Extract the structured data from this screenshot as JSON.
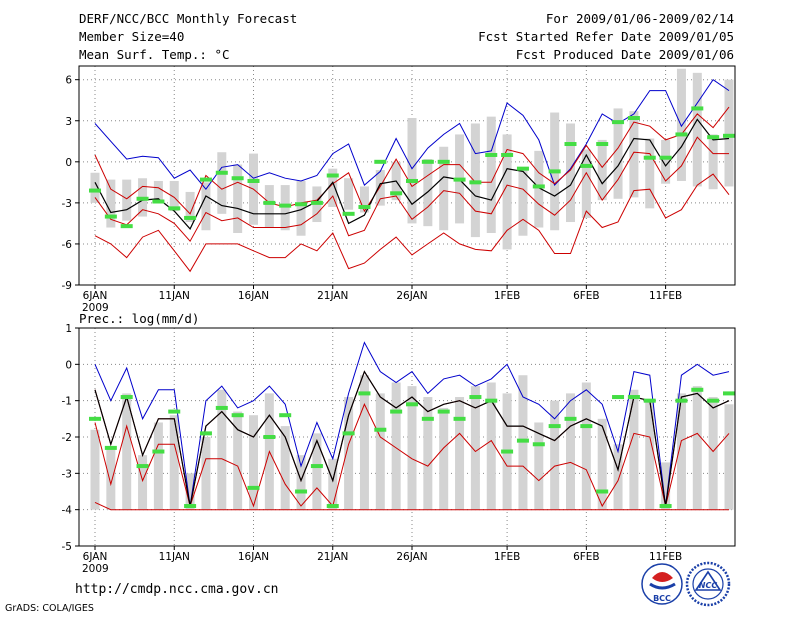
{
  "header": {
    "title": "DERF/NCC/BCC Monthly Forecast",
    "member_size": "Member Size=40",
    "variable": "Mean Surf. Temp.: °C",
    "period": "For 2009/01/06-2009/02/14",
    "started": "Fcst Started Refer Date 2009/01/05",
    "produced": "Fcst Produced Date 2009/01/06"
  },
  "footer": {
    "url": "http://cmdp.ncc.cma.gov.cn",
    "credit": "GrADS: COLA/IGES",
    "logo_left": "BCC",
    "logo_right": "NCC"
  },
  "colors": {
    "bar": "#d3d3d3",
    "max": "#0000cc",
    "min": "#cc0000",
    "ens_hi": "#cc0000",
    "ens_lo": "#cc0000",
    "mean": "#000000",
    "marker": "#44dd44",
    "grid": "#888888"
  },
  "chart_data": [
    {
      "type": "line",
      "title": "Mean Surf. Temp.: °C",
      "ylim": [
        -9,
        7
      ],
      "yticks": [
        -9,
        -6,
        -3,
        0,
        3,
        6
      ],
      "xticks": [
        {
          "day": 0,
          "label": "6JAN",
          "sub": "2009"
        },
        {
          "day": 5,
          "label": "11JAN"
        },
        {
          "day": 10,
          "label": "16JAN"
        },
        {
          "day": 15,
          "label": "21JAN"
        },
        {
          "day": 20,
          "label": "26JAN"
        },
        {
          "day": 26,
          "label": "1FEB"
        },
        {
          "day": 31,
          "label": "6FEB"
        },
        {
          "day": 36,
          "label": "11FEB"
        }
      ],
      "series": {
        "max": [
          2.8,
          1.5,
          0.2,
          0.4,
          0.3,
          -1.2,
          -0.6,
          -2.0,
          -0.4,
          -0.2,
          -1.2,
          -0.8,
          -1.2,
          -1.4,
          -1.0,
          0.6,
          1.3,
          -1.7,
          -0.7,
          1.7,
          -0.5,
          1.0,
          2.0,
          2.8,
          0.6,
          0.8,
          4.3,
          3.4,
          1.6,
          -1.7,
          -0.5,
          1.3,
          3.5,
          2.8,
          3.5,
          5.2,
          5.2,
          2.6,
          4.3,
          6.0,
          5.2
        ],
        "ens_hi": [
          0.5,
          -2.0,
          -2.7,
          -1.8,
          -1.9,
          -2.6,
          -3.8,
          -1.0,
          -2.0,
          -1.5,
          -2.0,
          -3.0,
          -3.3,
          -3.0,
          -2.8,
          -1.6,
          -0.8,
          -3.6,
          -1.8,
          0.2,
          -1.8,
          -1.0,
          -0.2,
          -0.2,
          -1.5,
          -1.5,
          0.9,
          0.6,
          -0.8,
          -1.6,
          -0.6,
          1.2,
          -0.4,
          1.0,
          2.9,
          2.6,
          1.6,
          2.0,
          3.5,
          2.5,
          4.0
        ],
        "mean": [
          -1.5,
          -3.7,
          -3.5,
          -2.8,
          -2.7,
          -3.6,
          -4.9,
          -2.5,
          -3.2,
          -3.4,
          -3.8,
          -3.8,
          -3.8,
          -3.5,
          -2.9,
          -1.5,
          -4.5,
          -3.9,
          -1.6,
          -1.4,
          -3.1,
          -2.2,
          -1.1,
          -1.3,
          -2.5,
          -2.8,
          -0.5,
          -0.7,
          -1.9,
          -2.5,
          -1.7,
          0.5,
          -1.6,
          -0.3,
          1.7,
          1.6,
          -0.3,
          1.1,
          3.1,
          1.6,
          1.7
        ],
        "ens_lo": [
          -2.6,
          -4.2,
          -4.6,
          -3.5,
          -3.8,
          -4.5,
          -5.8,
          -3.7,
          -4.3,
          -4.1,
          -4.8,
          -4.8,
          -4.8,
          -4.6,
          -3.8,
          -2.5,
          -5.4,
          -5.0,
          -2.7,
          -2.5,
          -4.2,
          -3.3,
          -2.1,
          -2.3,
          -3.6,
          -3.8,
          -1.7,
          -2.0,
          -3.1,
          -3.9,
          -2.8,
          -0.8,
          -2.8,
          -1.3,
          0.7,
          0.6,
          -1.4,
          -0.3,
          1.8,
          0.6,
          0.6
        ],
        "min": [
          -5.4,
          -6.0,
          -7.0,
          -5.5,
          -5.0,
          -6.5,
          -8.0,
          -6.0,
          -6.0,
          -6.0,
          -6.5,
          -7.0,
          -7.0,
          -6.0,
          -6.5,
          -5.2,
          -7.8,
          -7.4,
          -6.4,
          -5.5,
          -6.8,
          -6.0,
          -5.2,
          -6.0,
          -6.4,
          -6.5,
          -5.0,
          -4.2,
          -5.0,
          -6.7,
          -6.7,
          -3.6,
          -4.8,
          -4.4,
          -2.1,
          -2.0,
          -4.1,
          -3.5,
          -1.7,
          -0.9,
          -2.4
        ],
        "bar_top": [
          -0.8,
          -1.3,
          -1.3,
          -1.2,
          -1.4,
          -1.4,
          -2.2,
          -1.5,
          0.7,
          -0.2,
          0.6,
          -1.7,
          -1.7,
          -1.4,
          -1.8,
          -0.5,
          -1.2,
          -1.8,
          -0.6,
          0.0,
          3.2,
          0.2,
          1.1,
          2.0,
          2.8,
          3.3,
          2.0,
          -0.4,
          0.8,
          3.6,
          2.8,
          0.9,
          1.6,
          3.9,
          3.7,
          1.7,
          1.6,
          6.8,
          6.5,
          2.0,
          6.0
        ],
        "bar_bot": [
          -3.0,
          -4.8,
          -4.3,
          -4.0,
          -3.0,
          -3.6,
          -4.4,
          -5.0,
          -3.8,
          -5.2,
          -4.6,
          -4.8,
          -5.0,
          -5.4,
          -4.4,
          -3.3,
          -3.5,
          -3.7,
          -3.2,
          -2.8,
          -4.5,
          -4.7,
          -5.0,
          -4.5,
          -5.5,
          -5.2,
          -6.4,
          -5.4,
          -4.8,
          -5.0,
          -4.4,
          -4.1,
          -2.8,
          -2.7,
          -2.6,
          -3.4,
          -1.6,
          -1.4,
          -1.8,
          -2.0,
          -1.8
        ],
        "marker": [
          -2.1,
          -4.0,
          -4.7,
          -2.7,
          -2.9,
          -3.4,
          -4.1,
          -1.3,
          -0.8,
          -1.2,
          -1.4,
          -3.0,
          -3.2,
          -3.1,
          -3.0,
          -1.0,
          -3.8,
          -3.3,
          0.0,
          -2.3,
          -1.4,
          0.0,
          0.0,
          -1.3,
          -1.5,
          0.5,
          0.5,
          -0.5,
          -1.8,
          -0.7,
          1.3,
          -0.3,
          1.3,
          2.9,
          3.2,
          0.3,
          0.3,
          2.0,
          3.9,
          1.8,
          1.9
        ]
      }
    },
    {
      "type": "line",
      "title": "Prec.: log(mm/d)",
      "ylim": [
        -5,
        1
      ],
      "yticks": [
        -5,
        -4,
        -3,
        -2,
        -1,
        0,
        1
      ],
      "xticks": [
        {
          "day": 0,
          "label": "6JAN",
          "sub": "2009"
        },
        {
          "day": 5,
          "label": "11JAN"
        },
        {
          "day": 10,
          "label": "16JAN"
        },
        {
          "day": 15,
          "label": "21JAN"
        },
        {
          "day": 20,
          "label": "26JAN"
        },
        {
          "day": 26,
          "label": "1FEB"
        },
        {
          "day": 31,
          "label": "6FEB"
        },
        {
          "day": 36,
          "label": "11FEB"
        }
      ],
      "series": {
        "max": [
          0.0,
          -1.0,
          -0.1,
          -1.5,
          -0.7,
          -0.7,
          -3.9,
          -1.0,
          -0.6,
          -1.2,
          -1.0,
          -0.6,
          -1.1,
          -2.8,
          -1.6,
          -2.6,
          -0.8,
          0.6,
          -0.2,
          -0.5,
          -0.2,
          -0.8,
          -0.4,
          -0.3,
          -0.6,
          -0.4,
          0.0,
          -0.9,
          -1.1,
          -1.5,
          -1.0,
          -0.7,
          -1.1,
          -2.4,
          -0.2,
          -0.3,
          -3.9,
          -0.3,
          -0.0,
          -0.3,
          -0.2
        ],
        "ens_hi": [
          -0.7,
          -2.2,
          -0.9,
          -2.5,
          -1.5,
          -1.5,
          -3.9,
          -1.7,
          -1.3,
          -1.8,
          -2.0,
          -1.4,
          -2.0,
          -3.2,
          -2.1,
          -3.2,
          -1.4,
          -0.2,
          -0.9,
          -1.2,
          -0.9,
          -1.3,
          -1.1,
          -1.0,
          -1.2,
          -1.0,
          -1.7,
          -1.7,
          -1.9,
          -2.1,
          -1.7,
          -1.5,
          -1.7,
          -2.9,
          -0.9,
          -1.0,
          -3.9,
          -0.9,
          -0.8,
          -1.2,
          -1.0
        ],
        "mean": [
          -0.7,
          -2.2,
          -0.9,
          -2.5,
          -1.5,
          -1.5,
          -3.9,
          -1.7,
          -1.3,
          -1.8,
          -2.0,
          -1.4,
          -2.0,
          -3.2,
          -2.1,
          -3.2,
          -1.4,
          -0.2,
          -0.9,
          -1.2,
          -0.9,
          -1.3,
          -1.1,
          -1.0,
          -1.2,
          -1.0,
          -1.7,
          -1.7,
          -1.9,
          -2.1,
          -1.7,
          -1.5,
          -1.7,
          -2.9,
          -0.9,
          -1.0,
          -3.9,
          -0.9,
          -0.8,
          -1.2,
          -1.0
        ],
        "ens_lo": [
          -1.6,
          -3.3,
          -1.7,
          -3.2,
          -2.2,
          -2.2,
          -3.9,
          -2.6,
          -2.6,
          -2.8,
          -3.9,
          -2.4,
          -3.3,
          -3.9,
          -3.4,
          -3.9,
          -2.2,
          -1.1,
          -2.0,
          -2.3,
          -2.6,
          -2.8,
          -2.3,
          -1.9,
          -2.4,
          -2.1,
          -2.8,
          -2.8,
          -3.2,
          -2.8,
          -2.7,
          -2.9,
          -3.9,
          -3.2,
          -1.9,
          -2.0,
          -3.9,
          -2.1,
          -1.9,
          -2.4,
          -1.9
        ],
        "min": [
          -3.8,
          -4.0,
          -4.0,
          -4.0,
          -4.0,
          -4.0,
          -4.0,
          -4.0,
          -4.0,
          -4.0,
          -4.0,
          -4.0,
          -4.0,
          -4.0,
          -4.0,
          -4.0,
          -4.0,
          -4.0,
          -4.0,
          -4.0,
          -4.0,
          -4.0,
          -4.0,
          -4.0,
          -4.0,
          -4.0,
          -4.0,
          -4.0,
          -4.0,
          -4.0,
          -4.0,
          -4.0,
          -4.0,
          -4.0,
          -4.0,
          -4.0,
          -4.0,
          -4.0,
          -4.0,
          -4.0,
          -4.0
        ],
        "bar_top": [
          -1.8,
          -2.3,
          -0.8,
          -2.5,
          -1.6,
          -1.4,
          -3.0,
          -2.0,
          -0.7,
          -1.3,
          -1.4,
          -0.8,
          -1.7,
          -2.5,
          -1.9,
          -2.6,
          -0.9,
          -0.3,
          -0.8,
          -0.5,
          -0.6,
          -0.9,
          -1.2,
          -0.9,
          -0.6,
          -0.5,
          -0.8,
          -0.3,
          -1.6,
          -1.0,
          -0.8,
          -0.5,
          -1.5,
          -2.2,
          -0.7,
          -1.0,
          -2.7,
          -0.8,
          -0.6,
          -0.9,
          -1.1
        ],
        "bar_bot": [
          -4.0,
          -4.0,
          -4.0,
          -4.0,
          -4.0,
          -4.0,
          -4.0,
          -4.0,
          -4.0,
          -4.0,
          -4.0,
          -4.0,
          -4.0,
          -4.0,
          -4.0,
          -4.0,
          -4.0,
          -4.0,
          -4.0,
          -4.0,
          -4.0,
          -4.0,
          -4.0,
          -4.0,
          -4.0,
          -4.0,
          -4.0,
          -4.0,
          -4.0,
          -4.0,
          -4.0,
          -4.0,
          -4.0,
          -4.0,
          -4.0,
          -4.0,
          -4.0,
          -4.0,
          -4.0,
          -4.0,
          -4.0
        ],
        "marker": [
          -1.5,
          -2.3,
          -0.9,
          -2.8,
          -2.4,
          -1.3,
          -3.9,
          -1.9,
          -1.2,
          -1.4,
          -3.4,
          -2.0,
          -1.4,
          -3.5,
          -2.8,
          -3.9,
          -1.9,
          -0.8,
          -1.8,
          -1.3,
          -1.1,
          -1.5,
          -1.3,
          -1.5,
          -0.9,
          -1.0,
          -2.4,
          -2.1,
          -2.2,
          -1.7,
          -1.5,
          -1.7,
          -3.5,
          -0.9,
          -0.9,
          -1.0,
          -3.9,
          -1.0,
          -0.7,
          -1.0,
          -0.8
        ]
      }
    }
  ]
}
